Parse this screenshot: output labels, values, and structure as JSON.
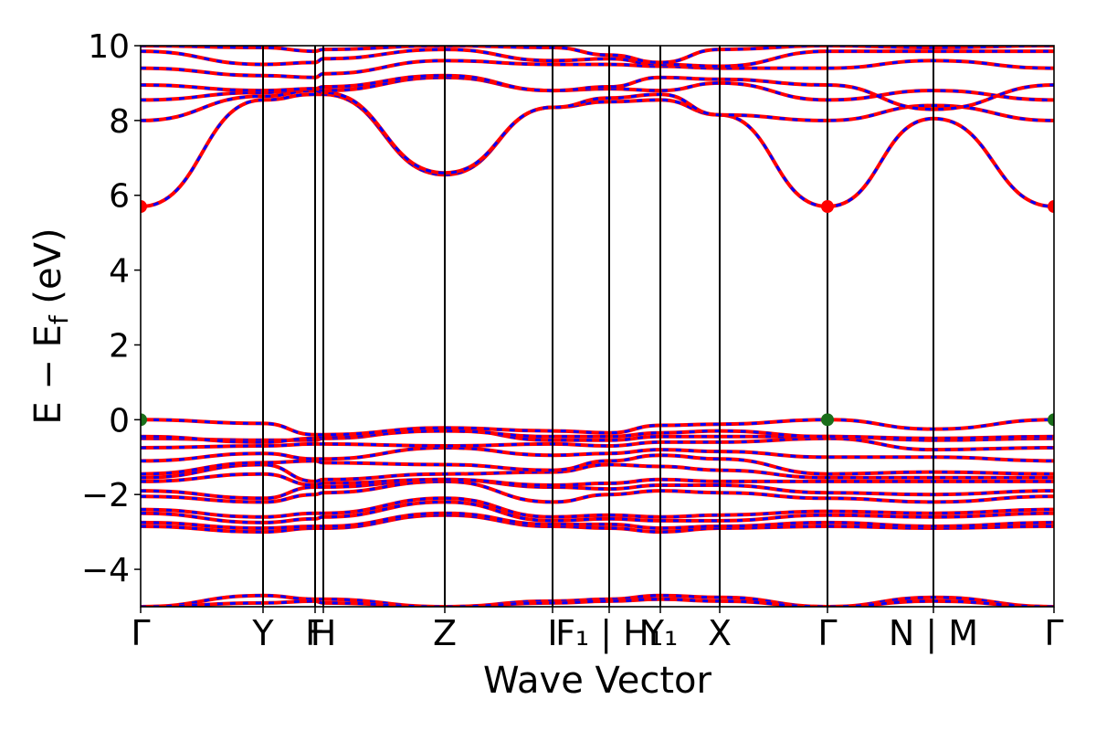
{
  "chart_data": {
    "type": "line",
    "xlabel": "Wave Vector",
    "ylabel": "E − E",
    "ylabel_sub": "f",
    "ylabel_unit": " (eV)",
    "ylim": [
      -5,
      10
    ],
    "yticks": [
      {
        "value": -4,
        "label": "−4"
      },
      {
        "value": -2,
        "label": "−2"
      },
      {
        "value": 0,
        "label": "0"
      },
      {
        "value": 2,
        "label": "2"
      },
      {
        "value": 4,
        "label": "4"
      },
      {
        "value": 6,
        "label": "6"
      },
      {
        "value": 8,
        "label": "8"
      },
      {
        "value": 10,
        "label": "10"
      }
    ],
    "xlim": [
      0,
      10
    ],
    "kpath": [
      {
        "pos": 0.0,
        "label": "Γ"
      },
      {
        "pos": 1.34,
        "label": "Y"
      },
      {
        "pos": 1.91,
        "label": "F"
      },
      {
        "pos": 2.0,
        "label": "H"
      },
      {
        "pos": 3.33,
        "label": "Z"
      },
      {
        "pos": 4.51,
        "label": "I"
      },
      {
        "pos": 5.13,
        "label": "F₁ | H₁"
      },
      {
        "pos": 5.69,
        "label": "Y₁"
      },
      {
        "pos": 6.34,
        "label": "X"
      },
      {
        "pos": 7.52,
        "label": "Γ"
      },
      {
        "pos": 8.68,
        "label": "N | M"
      },
      {
        "pos": 10.0,
        "label": "Γ"
      }
    ],
    "grid": false,
    "colors": {
      "band_red": "#ff0000",
      "band_blue": "#0000ff",
      "vbm_point": "#1a6e1a",
      "cbm_point": "#ff0000",
      "kpath_line": "#000000"
    },
    "band_points": {
      "x": [
        0.0,
        1.34,
        1.91,
        2.0,
        3.33,
        4.51,
        5.13,
        5.69,
        6.34,
        7.52,
        8.68,
        10.0
      ],
      "series": [
        {
          "values": [
            -5.0,
            -4.7,
            -4.8,
            -4.8,
            -5.0,
            -4.85,
            -4.8,
            -4.7,
            -4.75,
            -5.0,
            -4.75,
            -5.0
          ]
        },
        {
          "values": [
            -5.0,
            -4.9,
            -4.85,
            -4.9,
            -5.0,
            -4.9,
            -4.85,
            -4.8,
            -4.85,
            -5.0,
            -4.85,
            -5.0
          ]
        },
        {
          "values": [
            -2.85,
            -3.0,
            -2.9,
            -2.9,
            -2.55,
            -2.85,
            -2.9,
            -3.0,
            -2.9,
            -2.85,
            -2.9,
            -2.85
          ]
        },
        {
          "values": [
            -2.75,
            -2.9,
            -2.85,
            -2.85,
            -2.5,
            -2.8,
            -2.8,
            -2.9,
            -2.85,
            -2.75,
            -2.85,
            -2.75
          ]
        },
        {
          "values": [
            -2.5,
            -2.75,
            -2.65,
            -2.6,
            -2.2,
            -2.7,
            -2.65,
            -2.7,
            -2.7,
            -2.55,
            -2.6,
            -2.5
          ]
        },
        {
          "values": [
            -2.4,
            -2.6,
            -2.5,
            -2.5,
            -2.1,
            -2.6,
            -2.55,
            -2.6,
            -2.55,
            -2.45,
            -2.5,
            -2.4
          ]
        },
        {
          "values": [
            -2.05,
            -2.2,
            -2.0,
            -1.95,
            -1.65,
            -2.2,
            -2.0,
            -1.9,
            -1.95,
            -2.1,
            -2.2,
            -2.05
          ]
        },
        {
          "values": [
            -1.9,
            -2.1,
            -1.8,
            -1.8,
            -1.6,
            -1.8,
            -1.85,
            -1.75,
            -1.75,
            -1.95,
            -2.0,
            -1.9
          ]
        },
        {
          "values": [
            -1.65,
            -1.45,
            -1.75,
            -1.7,
            -1.6,
            -1.75,
            -1.7,
            -1.6,
            -1.65,
            -1.65,
            -1.65,
            -1.65
          ]
        },
        {
          "values": [
            -1.55,
            -1.2,
            -1.65,
            -1.6,
            -1.45,
            -1.4,
            -1.2,
            -1.25,
            -1.35,
            -1.55,
            -1.55,
            -1.55
          ]
        },
        {
          "values": [
            -1.45,
            -1.15,
            -1.1,
            -1.15,
            -1.2,
            -1.35,
            -1.1,
            -0.95,
            -1.05,
            -1.45,
            -1.4,
            -1.45
          ]
        },
        {
          "values": [
            -1.1,
            -0.9,
            -1.05,
            -1.05,
            -0.75,
            -0.95,
            -0.9,
            -0.8,
            -0.85,
            -1.0,
            -1.0,
            -1.1
          ]
        },
        {
          "values": [
            -0.75,
            -0.7,
            -0.65,
            -0.65,
            -0.7,
            -0.65,
            -0.7,
            -0.6,
            -0.6,
            -0.5,
            -0.8,
            -0.75
          ]
        },
        {
          "values": [
            -0.5,
            -0.55,
            -0.55,
            -0.5,
            -0.25,
            -0.55,
            -0.55,
            -0.45,
            -0.45,
            -0.45,
            -0.55,
            -0.5
          ]
        },
        {
          "values": [
            -0.45,
            -0.6,
            -0.5,
            -0.45,
            -0.3,
            -0.45,
            -0.45,
            -0.35,
            -0.3,
            -0.45,
            -0.5,
            -0.45
          ]
        },
        {
          "values": [
            0.0,
            -0.1,
            -0.4,
            -0.4,
            -0.22,
            -0.3,
            -0.35,
            -0.15,
            -0.12,
            0.0,
            -0.25,
            0.0
          ]
        },
        {
          "values": [
            5.7,
            8.55,
            8.7,
            8.7,
            6.55,
            8.35,
            8.5,
            8.55,
            8.15,
            5.7,
            8.05,
            5.7
          ]
        },
        {
          "values": [
            8.0,
            8.65,
            8.8,
            8.75,
            6.6,
            8.35,
            8.6,
            8.7,
            8.15,
            8.0,
            8.4,
            8.0
          ]
        },
        {
          "values": [
            8.55,
            8.75,
            8.85,
            8.8,
            9.15,
            8.8,
            8.85,
            8.8,
            9.0,
            8.55,
            8.8,
            8.55
          ]
        },
        {
          "values": [
            8.95,
            8.8,
            8.85,
            8.9,
            9.2,
            8.8,
            8.9,
            9.15,
            9.1,
            8.95,
            8.3,
            8.95
          ]
        },
        {
          "values": [
            9.4,
            9.2,
            9.15,
            9.25,
            9.6,
            9.5,
            9.5,
            9.45,
            9.4,
            9.4,
            9.6,
            9.4
          ]
        },
        {
          "values": [
            9.85,
            9.5,
            9.55,
            9.65,
            9.9,
            9.6,
            9.65,
            9.5,
            9.45,
            9.85,
            9.85,
            9.85
          ]
        },
        {
          "values": [
            10.0,
            9.95,
            9.85,
            9.9,
            10.0,
            9.95,
            9.75,
            9.55,
            9.9,
            10.0,
            9.95,
            10.0
          ]
        }
      ]
    },
    "markers": [
      {
        "x": 0.0,
        "y": 0.0,
        "kind": "vbm"
      },
      {
        "x": 7.52,
        "y": 0.0,
        "kind": "vbm"
      },
      {
        "x": 10.0,
        "y": 0.0,
        "kind": "vbm"
      },
      {
        "x": 0.0,
        "y": 5.7,
        "kind": "cbm"
      },
      {
        "x": 7.52,
        "y": 5.7,
        "kind": "cbm"
      },
      {
        "x": 10.0,
        "y": 5.7,
        "kind": "cbm"
      }
    ]
  }
}
